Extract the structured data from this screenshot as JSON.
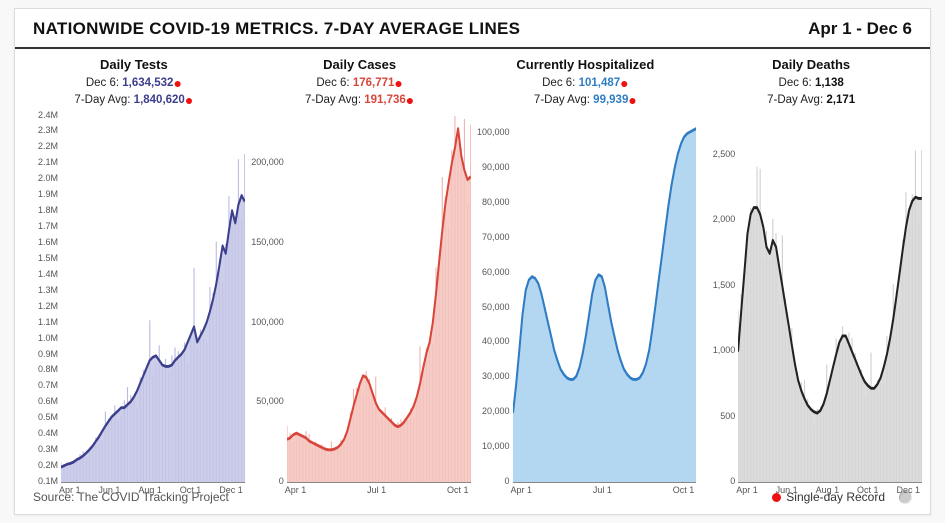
{
  "header": {
    "title": "NATIONWIDE COVID-19 METRICS. 7-DAY AVERAGE LINES",
    "date_range": "Apr 1 - Dec 6"
  },
  "footer": {
    "source": "Source: The COVID Tracking Project",
    "legend_record": "Single-day Record"
  },
  "x_labels_5": [
    "Apr 1",
    "Jun 1",
    "Aug 1",
    "Oct 1",
    "Dec 1"
  ],
  "x_labels_3": [
    "Apr 1",
    "Jul 1",
    "Oct 1"
  ],
  "panels": [
    {
      "key": "tests",
      "title": "Daily Tests",
      "date_label": "Dec 6:",
      "date_value": "1,634,532",
      "avg_label": "7-Day Avg:",
      "avg_value": "1,840,620",
      "has_record": true,
      "val_color": "#3b3f8c",
      "line_color": "#3b3f8c",
      "fill_color": "#c3c5e6",
      "bar_color": "#b8bbe0",
      "ymax": 2400000,
      "ylabels": [
        "2.4M",
        "2.3M",
        "2.2M",
        "2.1M",
        "2.0M",
        "1.9M",
        "1.8M",
        "1.7M",
        "1.6M",
        "1.5M",
        "1.4M",
        "1.3M",
        "1.2M",
        "1.1M",
        "1.0M",
        "0.9M",
        "0.8M",
        "0.7M",
        "0.6M",
        "0.5M",
        "0.4M",
        "0.3M",
        "0.2M",
        "0.1M"
      ],
      "xmode": "5",
      "series": [
        100000,
        110000,
        120000,
        125000,
        135000,
        150000,
        160000,
        175000,
        195000,
        215000,
        240000,
        270000,
        300000,
        335000,
        370000,
        400000,
        430000,
        450000,
        470000,
        490000,
        490000,
        510000,
        530000,
        560000,
        600000,
        650000,
        700000,
        750000,
        800000,
        820000,
        830000,
        800000,
        770000,
        760000,
        760000,
        770000,
        800000,
        820000,
        840000,
        870000,
        920000,
        970000,
        1020000,
        920000,
        960000,
        1000000,
        1050000,
        1120000,
        1200000,
        1300000,
        1420000,
        1550000,
        1500000,
        1650000,
        1780000,
        1700000,
        1820000,
        1880000,
        1840000
      ]
    },
    {
      "key": "cases",
      "title": "Daily Cases",
      "date_label": "Dec 6:",
      "date_value": "176,771",
      "avg_label": "7-Day Avg:",
      "avg_value": "191,736",
      "has_record": true,
      "val_color": "#d9453a",
      "line_color": "#d9453a",
      "fill_color": "#f5c3bd",
      "bar_color": "#f0b3ab",
      "ymax": 230000,
      "ylabels": [
        "200,000",
        "150,000",
        "100,000",
        "50,000",
        "0"
      ],
      "ylabel_pad_top": 0.13,
      "xmode": "3",
      "series": [
        27000,
        28000,
        30000,
        31000,
        30000,
        29000,
        28000,
        26000,
        25000,
        24000,
        23000,
        22000,
        21000,
        20500,
        20500,
        21000,
        22000,
        24000,
        27000,
        32000,
        40000,
        48000,
        55000,
        62000,
        67000,
        66000,
        62000,
        56000,
        50000,
        46000,
        44000,
        42000,
        40000,
        38000,
        36000,
        35000,
        36000,
        38000,
        41000,
        44000,
        48000,
        54000,
        62000,
        72000,
        81000,
        88000,
        100000,
        118000,
        138000,
        158000,
        175000,
        188000,
        200000,
        210000,
        222000,
        205000,
        196000,
        190000,
        192000
      ]
    },
    {
      "key": "hosp",
      "title": "Currently Hospitalized",
      "date_label": "Dec 6:",
      "date_value": "101,487",
      "avg_label": "7-Day Avg:",
      "avg_value": "99,939",
      "has_record": true,
      "val_color": "#2f7cc4",
      "line_color": "#2f7cc4",
      "fill_color": "#a6d0ee",
      "bar_color": "#a6d0ee",
      "ymax": 105000,
      "ylabels": [
        "100,000",
        "90,000",
        "80,000",
        "70,000",
        "60,000",
        "50,000",
        "40,000",
        "30,000",
        "20,000",
        "10,000",
        "0"
      ],
      "ylabel_pad_top": 0.048,
      "xmode": "3",
      "no_bars": true,
      "series": [
        20000,
        28000,
        38000,
        48000,
        55000,
        58000,
        59000,
        58500,
        57000,
        54000,
        50000,
        46000,
        42000,
        38000,
        35000,
        32500,
        31000,
        30000,
        29500,
        29500,
        30500,
        33000,
        37000,
        42000,
        48000,
        54000,
        58000,
        59500,
        59000,
        56000,
        51000,
        46000,
        42000,
        38000,
        35000,
        32500,
        31000,
        30000,
        29500,
        29500,
        30000,
        31500,
        34000,
        38000,
        44000,
        51000,
        58000,
        65000,
        72000,
        79000,
        85000,
        90000,
        94000,
        97000,
        99000,
        100000,
        100500,
        101000,
        101487
      ]
    },
    {
      "key": "deaths",
      "title": "Daily Deaths",
      "date_label": "Dec 6:",
      "date_value": "1,138",
      "avg_label": "7-Day Avg:",
      "avg_value": "2,171",
      "has_record": false,
      "val_color": "#111111",
      "line_color": "#222222",
      "fill_color": "#d6d6d6",
      "bar_color": "#cfcfcf",
      "ymax": 2800,
      "ylabels": [
        "2,500",
        "2,000",
        "1,500",
        "1,000",
        "500",
        "0"
      ],
      "ylabel_pad_top": 0.107,
      "xmode": "5",
      "series": [
        1000,
        1300,
        1600,
        1900,
        2050,
        2100,
        2100,
        2050,
        1950,
        1800,
        1750,
        1850,
        1800,
        1650,
        1500,
        1350,
        1200,
        1050,
        900,
        780,
        700,
        640,
        590,
        560,
        540,
        530,
        550,
        600,
        680,
        780,
        880,
        980,
        1070,
        1120,
        1120,
        1060,
        1000,
        940,
        880,
        820,
        770,
        740,
        720,
        720,
        750,
        800,
        880,
        980,
        1100,
        1250,
        1420,
        1600,
        1780,
        1950,
        2080,
        2150,
        2180,
        2170,
        2170
      ]
    }
  ]
}
